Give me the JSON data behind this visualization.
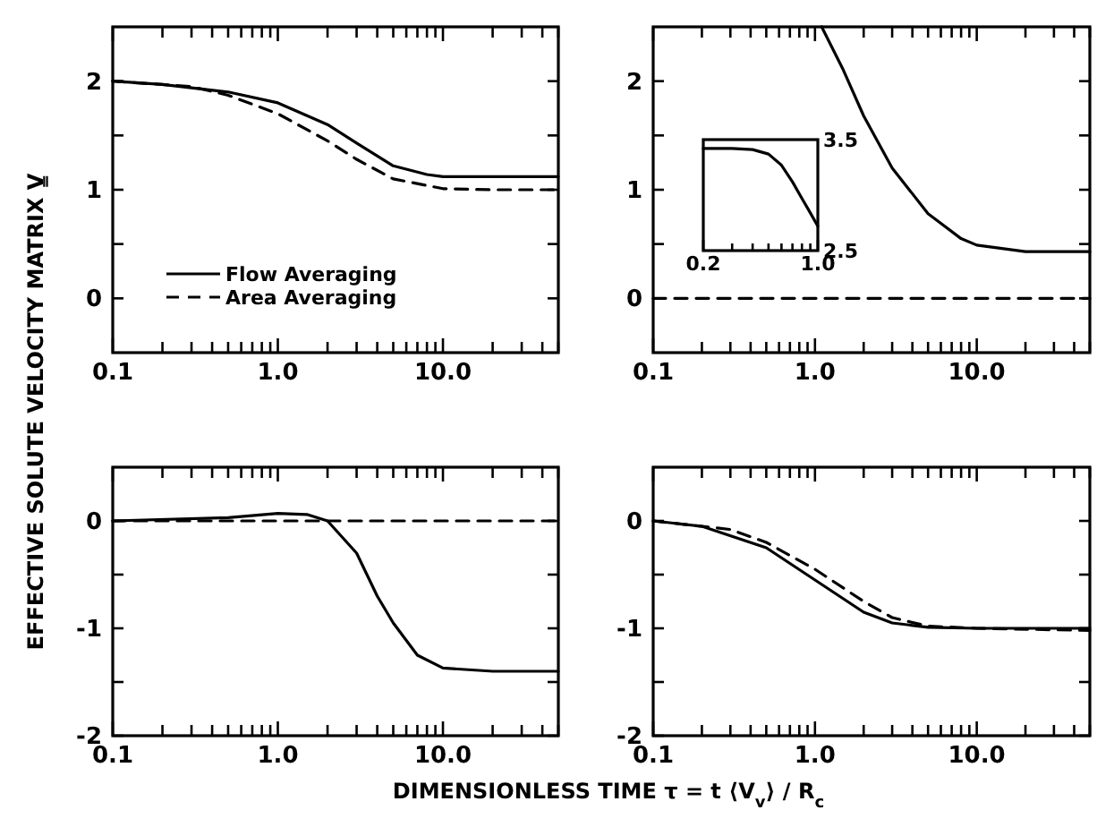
{
  "chart_data": [
    {
      "type": "line",
      "log": "x",
      "xlim": [
        0.1,
        50
      ],
      "ylim": [
        -0.5,
        2.5
      ],
      "xticks": [
        {
          "value": 0.1,
          "label": "0.1"
        },
        {
          "value": 0.2,
          "label": null
        },
        {
          "value": 0.3,
          "label": null
        },
        {
          "value": 0.4,
          "label": null
        },
        {
          "value": 0.5,
          "label": null
        },
        {
          "value": 0.6,
          "label": null
        },
        {
          "value": 0.7,
          "label": null
        },
        {
          "value": 0.8,
          "label": null
        },
        {
          "value": 0.9,
          "label": null
        },
        {
          "value": 1,
          "label": "1.0"
        },
        {
          "value": 2,
          "label": null
        },
        {
          "value": 3,
          "label": null
        },
        {
          "value": 4,
          "label": null
        },
        {
          "value": 5,
          "label": null
        },
        {
          "value": 6,
          "label": null
        },
        {
          "value": 7,
          "label": null
        },
        {
          "value": 8,
          "label": null
        },
        {
          "value": 9,
          "label": null
        },
        {
          "value": 10,
          "label": "10.0"
        },
        {
          "value": 20,
          "label": null
        },
        {
          "value": 30,
          "label": null
        },
        {
          "value": 40,
          "label": null
        },
        {
          "value": 50,
          "label": null
        }
      ],
      "yticks": [
        0,
        {
          "value": 0.5,
          "label": null
        },
        1,
        {
          "value": 1.5,
          "label": null
        },
        2
      ],
      "ylabel": "EFFECTIVE SOLUTE VELOCITY MATRIX  V̳",
      "legend": "bottom left",
      "series": [
        {
          "name": "Flow Averaging",
          "color": "#000000",
          "line_style": "solid",
          "x": [
            0.1,
            0.2,
            0.5,
            1,
            2,
            3,
            5,
            8,
            10,
            20,
            50
          ],
          "values": [
            2.0,
            1.97,
            1.9,
            1.8,
            1.6,
            1.43,
            1.22,
            1.14,
            1.12,
            1.12,
            1.12
          ]
        },
        {
          "name": "Area Averaging",
          "color": "#000000",
          "line_style": "dashed",
          "x": [
            0.1,
            0.3,
            0.5,
            1,
            2,
            3,
            5,
            10,
            20,
            50
          ],
          "values": [
            2.0,
            1.95,
            1.87,
            1.7,
            1.45,
            1.28,
            1.1,
            1.01,
            1.0,
            1.0
          ]
        }
      ]
    },
    {
      "type": "line",
      "log": "x",
      "xlim": [
        0.1,
        50
      ],
      "ylim": [
        -0.5,
        2.5
      ],
      "xticks": [
        {
          "value": 0.1,
          "label": "0.1"
        },
        {
          "value": 0.2,
          "label": null
        },
        {
          "value": 0.3,
          "label": null
        },
        {
          "value": 0.4,
          "label": null
        },
        {
          "value": 0.5,
          "label": null
        },
        {
          "value": 0.6,
          "label": null
        },
        {
          "value": 0.7,
          "label": null
        },
        {
          "value": 0.8,
          "label": null
        },
        {
          "value": 0.9,
          "label": null
        },
        {
          "value": 1,
          "label": "1.0"
        },
        {
          "value": 2,
          "label": null
        },
        {
          "value": 3,
          "label": null
        },
        {
          "value": 4,
          "label": null
        },
        {
          "value": 5,
          "label": null
        },
        {
          "value": 6,
          "label": null
        },
        {
          "value": 7,
          "label": null
        },
        {
          "value": 8,
          "label": null
        },
        {
          "value": 9,
          "label": null
        },
        {
          "value": 10,
          "label": "10.0"
        },
        {
          "value": 20,
          "label": null
        },
        {
          "value": 30,
          "label": null
        },
        {
          "value": 40,
          "label": null
        },
        {
          "value": 50,
          "label": null
        }
      ],
      "yticks": [
        0,
        {
          "value": 0.5,
          "label": null
        },
        1,
        {
          "value": 1.5,
          "label": null
        },
        2
      ],
      "series": [
        {
          "color": "#000000",
          "line_style": "solid",
          "x": [
            1.1,
            1.5,
            2,
            3,
            5,
            8,
            10,
            20,
            50
          ],
          "values": [
            2.5,
            2.1,
            1.68,
            1.2,
            0.78,
            0.55,
            0.49,
            0.43,
            0.43
          ]
        },
        {
          "color": "#000000",
          "line_style": "dashed",
          "x": [
            0.1,
            50
          ],
          "values": [
            0,
            0
          ]
        }
      ]
    },
    {
      "type": "line",
      "log": "x",
      "xlim": [
        0.1,
        50
      ],
      "ylim": [
        -2,
        0.5
      ],
      "xticks": [
        {
          "value": 0.1,
          "label": "0.1"
        },
        {
          "value": 0.2,
          "label": null
        },
        {
          "value": 0.3,
          "label": null
        },
        {
          "value": 0.4,
          "label": null
        },
        {
          "value": 0.5,
          "label": null
        },
        {
          "value": 0.6,
          "label": null
        },
        {
          "value": 0.7,
          "label": null
        },
        {
          "value": 0.8,
          "label": null
        },
        {
          "value": 0.9,
          "label": null
        },
        {
          "value": 1,
          "label": "1.0"
        },
        {
          "value": 2,
          "label": null
        },
        {
          "value": 3,
          "label": null
        },
        {
          "value": 4,
          "label": null
        },
        {
          "value": 5,
          "label": null
        },
        {
          "value": 6,
          "label": null
        },
        {
          "value": 7,
          "label": null
        },
        {
          "value": 8,
          "label": null
        },
        {
          "value": 9,
          "label": null
        },
        {
          "value": 10,
          "label": "10.0"
        },
        {
          "value": 20,
          "label": null
        },
        {
          "value": 30,
          "label": null
        },
        {
          "value": 40,
          "label": null
        },
        {
          "value": 50,
          "label": null
        }
      ],
      "yticks": [
        -2,
        {
          "value": -1.5,
          "label": null
        },
        -1,
        {
          "value": -0.5,
          "label": null
        },
        0
      ],
      "xlabel": "DIMENSIONLESS TIME   τ = t ⟨V$_{v}$⟩ / R$_{c}$",
      "series": [
        {
          "color": "#000000",
          "line_style": "solid",
          "x": [
            0.1,
            0.5,
            1,
            1.5,
            2,
            3,
            4,
            5,
            7,
            10,
            20,
            50
          ],
          "values": [
            0,
            0.03,
            0.07,
            0.06,
            0,
            -0.3,
            -0.7,
            -0.95,
            -1.25,
            -1.37,
            -1.4,
            -1.4
          ]
        },
        {
          "color": "#000000",
          "line_style": "dashed",
          "x": [
            0.1,
            50
          ],
          "values": [
            0,
            0
          ]
        }
      ]
    },
    {
      "type": "line",
      "log": "x",
      "xlim": [
        0.1,
        50
      ],
      "ylim": [
        -2,
        0.5
      ],
      "xticks": [
        {
          "value": 0.1,
          "label": "0.1"
        },
        {
          "value": 0.2,
          "label": null
        },
        {
          "value": 0.3,
          "label": null
        },
        {
          "value": 0.4,
          "label": null
        },
        {
          "value": 0.5,
          "label": null
        },
        {
          "value": 0.6,
          "label": null
        },
        {
          "value": 0.7,
          "label": null
        },
        {
          "value": 0.8,
          "label": null
        },
        {
          "value": 0.9,
          "label": null
        },
        {
          "value": 1,
          "label": "1.0"
        },
        {
          "value": 2,
          "label": null
        },
        {
          "value": 3,
          "label": null
        },
        {
          "value": 4,
          "label": null
        },
        {
          "value": 5,
          "label": null
        },
        {
          "value": 6,
          "label": null
        },
        {
          "value": 7,
          "label": null
        },
        {
          "value": 8,
          "label": null
        },
        {
          "value": 9,
          "label": null
        },
        {
          "value": 10,
          "label": "10.0"
        },
        {
          "value": 20,
          "label": null
        },
        {
          "value": 30,
          "label": null
        },
        {
          "value": 40,
          "label": null
        },
        {
          "value": 50,
          "label": null
        }
      ],
      "yticks": [
        -2,
        {
          "value": -1.5,
          "label": null
        },
        -1,
        {
          "value": -0.5,
          "label": null
        },
        0
      ],
      "series": [
        {
          "color": "#000000",
          "line_style": "solid",
          "x": [
            0.1,
            0.2,
            0.5,
            1,
            2,
            3,
            5,
            10,
            50
          ],
          "values": [
            0,
            -0.05,
            -0.25,
            -0.55,
            -0.85,
            -0.95,
            -0.99,
            -1.0,
            -1.0
          ]
        },
        {
          "color": "#000000",
          "line_style": "dashed",
          "x": [
            0.1,
            0.3,
            0.5,
            1,
            2,
            3,
            5,
            10,
            50
          ],
          "values": [
            0,
            -0.08,
            -0.2,
            -0.45,
            -0.75,
            -0.9,
            -0.98,
            -1.0,
            -1.02
          ]
        }
      ]
    },
    {
      "type": "line",
      "log": "x",
      "xlim": [
        0.2,
        1.0
      ],
      "ylim": [
        2.5,
        3.5
      ],
      "xticks": [
        {
          "value": 0.2,
          "label": "0.2"
        },
        {
          "value": 0.3,
          "label": null
        },
        {
          "value": 0.4,
          "label": null
        },
        {
          "value": 0.5,
          "label": null
        },
        {
          "value": 0.6,
          "label": null
        },
        {
          "value": 0.7,
          "label": null
        },
        {
          "value": 0.8,
          "label": null
        },
        {
          "value": 0.9,
          "label": null
        },
        {
          "value": 1,
          "label": "1.0"
        }
      ],
      "yticks": [
        2.5,
        3.5
      ],
      "series": [
        {
          "color": "#000000",
          "line_style": "solid",
          "x": [
            0.2,
            0.3,
            0.4,
            0.5,
            0.6,
            0.7,
            0.8,
            0.9,
            1.0
          ],
          "values": [
            3.42,
            3.42,
            3.41,
            3.37,
            3.27,
            3.12,
            2.97,
            2.84,
            2.72
          ]
        }
      ]
    }
  ]
}
